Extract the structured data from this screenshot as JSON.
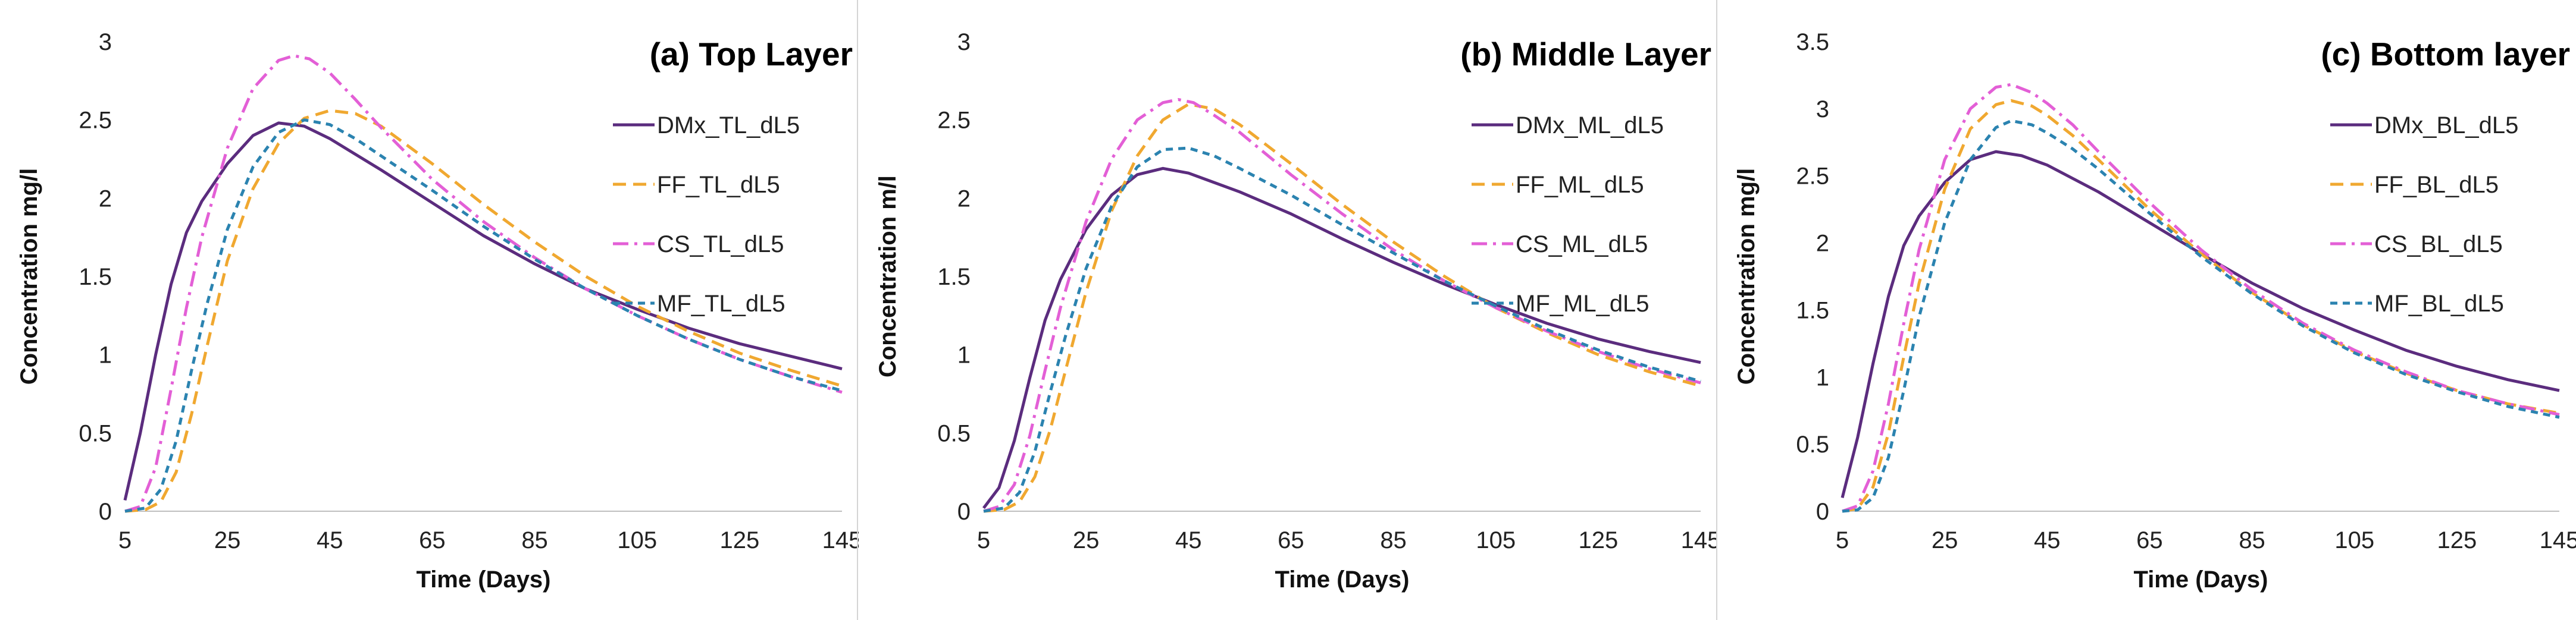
{
  "chart_data": [
    {
      "type": "line",
      "title": "(a) Top Layer",
      "xlabel": "Time (Days)",
      "ylabel": "Concentration mg/l",
      "xlim": [
        5,
        145
      ],
      "ylim": [
        0,
        3
      ],
      "xticks": [
        5,
        25,
        45,
        65,
        85,
        105,
        125,
        145
      ],
      "yticks": [
        0,
        0.5,
        1,
        1.5,
        2,
        2.5,
        3
      ],
      "ytick_labels": [
        "0",
        "0.5",
        "1",
        "1.5",
        "2",
        "2.5",
        "3"
      ],
      "grid": false,
      "legend": "upper-right",
      "series": [
        {
          "name": "DMx_TL_dL5",
          "color": "#5b2c7e",
          "dash": "solid",
          "x": [
            5,
            8,
            11,
            14,
            17,
            20,
            25,
            30,
            35,
            40,
            45,
            55,
            65,
            75,
            85,
            95,
            105,
            115,
            125,
            135,
            145
          ],
          "y": [
            0.07,
            0.5,
            1.0,
            1.45,
            1.78,
            1.98,
            2.22,
            2.4,
            2.48,
            2.46,
            2.38,
            2.18,
            1.97,
            1.76,
            1.58,
            1.42,
            1.29,
            1.17,
            1.07,
            0.99,
            0.91
          ]
        },
        {
          "name": "FF_TL_dL5",
          "color": "#f0a830",
          "dash": "dash",
          "x": [
            5,
            9,
            12,
            15,
            18,
            21,
            25,
            30,
            35,
            40,
            45,
            50,
            55,
            65,
            75,
            85,
            95,
            105,
            115,
            125,
            135,
            145
          ],
          "y": [
            0,
            0.01,
            0.06,
            0.25,
            0.62,
            1.05,
            1.6,
            2.06,
            2.35,
            2.51,
            2.56,
            2.54,
            2.46,
            2.22,
            1.96,
            1.72,
            1.5,
            1.31,
            1.15,
            1.01,
            0.9,
            0.8
          ]
        },
        {
          "name": "CS_TL_dL5",
          "color": "#e35fd6",
          "dash": "dashdot",
          "x": [
            5,
            8,
            11,
            14,
            17,
            20,
            25,
            30,
            35,
            38,
            41,
            45,
            50,
            55,
            65,
            75,
            85,
            95,
            105,
            115,
            125,
            135,
            145
          ],
          "y": [
            0,
            0.03,
            0.28,
            0.78,
            1.3,
            1.75,
            2.32,
            2.7,
            2.88,
            2.91,
            2.89,
            2.8,
            2.63,
            2.45,
            2.12,
            1.85,
            1.62,
            1.42,
            1.25,
            1.1,
            0.97,
            0.86,
            0.76
          ]
        },
        {
          "name": "MF_TL_dL5",
          "color": "#2b83b0",
          "dash": "shortdash",
          "x": [
            5,
            9,
            12,
            15,
            18,
            21,
            25,
            30,
            35,
            40,
            45,
            50,
            55,
            65,
            75,
            85,
            95,
            105,
            115,
            125,
            135,
            145
          ],
          "y": [
            0,
            0.02,
            0.14,
            0.45,
            0.9,
            1.32,
            1.8,
            2.2,
            2.42,
            2.5,
            2.47,
            2.38,
            2.27,
            2.05,
            1.82,
            1.61,
            1.42,
            1.25,
            1.1,
            0.97,
            0.86,
            0.77
          ]
        }
      ]
    },
    {
      "type": "line",
      "title": "(b) Middle Layer",
      "xlabel": "Time (Days)",
      "ylabel": "Concentration m/l",
      "xlim": [
        5,
        145
      ],
      "ylim": [
        0,
        3
      ],
      "xticks": [
        5,
        25,
        45,
        65,
        85,
        105,
        125,
        145
      ],
      "yticks": [
        0,
        0.5,
        1,
        1.5,
        2,
        2.5,
        3
      ],
      "ytick_labels": [
        "0",
        "0.5",
        "1",
        "1.5",
        "2",
        "2.5",
        "3"
      ],
      "grid": false,
      "legend": "upper-right",
      "series": [
        {
          "name": "DMx_ML_dL5",
          "color": "#5b2c7e",
          "dash": "solid",
          "x": [
            5,
            8,
            11,
            14,
            17,
            20,
            25,
            30,
            35,
            40,
            45,
            55,
            65,
            75,
            85,
            95,
            105,
            115,
            125,
            135,
            145
          ],
          "y": [
            0.02,
            0.15,
            0.45,
            0.85,
            1.22,
            1.48,
            1.8,
            2.02,
            2.15,
            2.19,
            2.16,
            2.04,
            1.9,
            1.74,
            1.59,
            1.45,
            1.32,
            1.2,
            1.1,
            1.02,
            0.95
          ]
        },
        {
          "name": "FF_ML_dL5",
          "color": "#f0a830",
          "dash": "dash",
          "x": [
            5,
            9,
            12,
            15,
            18,
            21,
            25,
            30,
            35,
            40,
            45,
            50,
            55,
            65,
            75,
            85,
            95,
            105,
            115,
            125,
            135,
            145
          ],
          "y": [
            0,
            0.01,
            0.06,
            0.22,
            0.52,
            0.9,
            1.4,
            1.92,
            2.27,
            2.5,
            2.6,
            2.57,
            2.47,
            2.22,
            1.96,
            1.72,
            1.5,
            1.3,
            1.14,
            1.0,
            0.89,
            0.8
          ]
        },
        {
          "name": "CS_ML_dL5",
          "color": "#e35fd6",
          "dash": "dashdot",
          "x": [
            5,
            8,
            11,
            14,
            17,
            20,
            25,
            30,
            35,
            40,
            43,
            46,
            50,
            55,
            65,
            75,
            85,
            95,
            105,
            115,
            125,
            135,
            145
          ],
          "y": [
            0,
            0.03,
            0.17,
            0.48,
            0.9,
            1.3,
            1.85,
            2.25,
            2.5,
            2.61,
            2.63,
            2.61,
            2.53,
            2.42,
            2.15,
            1.9,
            1.67,
            1.47,
            1.3,
            1.15,
            1.02,
            0.91,
            0.82
          ]
        },
        {
          "name": "MF_ML_dL5",
          "color": "#2b83b0",
          "dash": "shortdash",
          "x": [
            5,
            9,
            12,
            15,
            18,
            21,
            25,
            30,
            35,
            40,
            45,
            50,
            55,
            65,
            75,
            85,
            95,
            105,
            115,
            125,
            135,
            145
          ],
          "y": [
            0,
            0.02,
            0.12,
            0.38,
            0.76,
            1.12,
            1.55,
            1.95,
            2.2,
            2.31,
            2.32,
            2.27,
            2.19,
            2.02,
            1.83,
            1.65,
            1.47,
            1.31,
            1.16,
            1.03,
            0.92,
            0.83
          ]
        }
      ]
    },
    {
      "type": "line",
      "title": "(c) Bottom layer",
      "xlabel": "Time (Days)",
      "ylabel": "Concentration mg/l",
      "xlim": [
        5,
        145
      ],
      "ylim": [
        0,
        3.5
      ],
      "xticks": [
        5,
        25,
        45,
        65,
        85,
        105,
        125,
        145
      ],
      "yticks": [
        0,
        0.5,
        1,
        1.5,
        2,
        2.5,
        3,
        3.5
      ],
      "ytick_labels": [
        "0",
        "0.5",
        "1",
        "1.5",
        "2",
        "2.5",
        "3",
        "3.5"
      ],
      "grid": false,
      "legend": "upper-right",
      "series": [
        {
          "name": "DMx_BL_dL5",
          "color": "#5b2c7e",
          "dash": "solid",
          "x": [
            5,
            8,
            11,
            14,
            17,
            20,
            25,
            30,
            35,
            40,
            45,
            55,
            65,
            75,
            85,
            95,
            105,
            115,
            125,
            135,
            145
          ],
          "y": [
            0.1,
            0.55,
            1.1,
            1.6,
            1.98,
            2.2,
            2.45,
            2.62,
            2.68,
            2.65,
            2.58,
            2.38,
            2.15,
            1.92,
            1.7,
            1.51,
            1.35,
            1.2,
            1.08,
            0.98,
            0.9
          ]
        },
        {
          "name": "FF_BL_dL5",
          "color": "#f0a830",
          "dash": "dash",
          "x": [
            5,
            8,
            11,
            14,
            17,
            20,
            25,
            30,
            35,
            38,
            42,
            45,
            50,
            55,
            65,
            75,
            85,
            95,
            105,
            115,
            125,
            135,
            145
          ],
          "y": [
            0,
            0.02,
            0.18,
            0.58,
            1.15,
            1.7,
            2.4,
            2.85,
            3.03,
            3.06,
            3.02,
            2.95,
            2.8,
            2.62,
            2.25,
            1.92,
            1.63,
            1.39,
            1.19,
            1.03,
            0.9,
            0.8,
            0.73
          ]
        },
        {
          "name": "CS_BL_dL5",
          "color": "#e35fd6",
          "dash": "dashdot",
          "x": [
            5,
            8,
            11,
            14,
            17,
            20,
            25,
            30,
            35,
            38,
            42,
            45,
            50,
            55,
            65,
            75,
            85,
            95,
            105,
            115,
            125,
            135,
            145
          ],
          "y": [
            0,
            0.04,
            0.3,
            0.8,
            1.4,
            1.95,
            2.62,
            3.0,
            3.16,
            3.18,
            3.12,
            3.04,
            2.88,
            2.68,
            2.3,
            1.95,
            1.65,
            1.4,
            1.2,
            1.04,
            0.9,
            0.8,
            0.72
          ]
        },
        {
          "name": "MF_BL_dL5",
          "color": "#2b83b0",
          "dash": "shortdash",
          "x": [
            5,
            8,
            11,
            14,
            17,
            20,
            25,
            30,
            35,
            38,
            42,
            45,
            50,
            55,
            65,
            75,
            85,
            95,
            105,
            115,
            125,
            135,
            145
          ],
          "y": [
            0,
            0.01,
            0.1,
            0.4,
            0.9,
            1.45,
            2.15,
            2.62,
            2.86,
            2.91,
            2.88,
            2.82,
            2.7,
            2.55,
            2.22,
            1.9,
            1.62,
            1.38,
            1.18,
            1.02,
            0.89,
            0.78,
            0.7
          ]
        }
      ]
    }
  ]
}
